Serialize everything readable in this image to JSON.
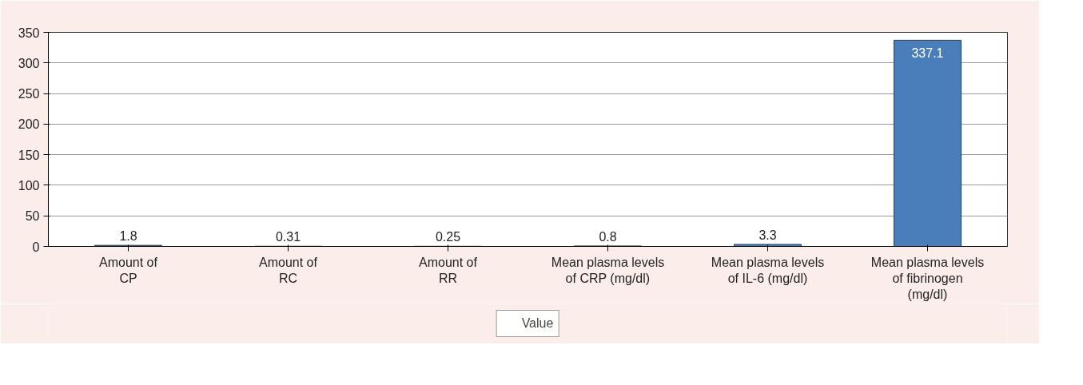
{
  "chart_data": {
    "type": "bar",
    "categories": [
      "Amount of CP",
      "Amount of RC",
      "Amount of RR",
      "Mean plasma levels of CRP (mg/dl)",
      "Mean plasma levels of IL-6 (mg/dl)",
      "Mean plasma levels of fibrinogen (mg/dl)"
    ],
    "series": [
      {
        "name": "Value",
        "color": "#4a7ebb",
        "values": [
          1.8,
          0.31,
          0.25,
          0.8,
          3.3,
          337.1
        ]
      }
    ],
    "ylim": [
      0,
      350
    ],
    "yticks": [
      0,
      50,
      100,
      150,
      200,
      250,
      300,
      350
    ],
    "grid": "y",
    "legend": "bottom",
    "data_labels": true
  }
}
